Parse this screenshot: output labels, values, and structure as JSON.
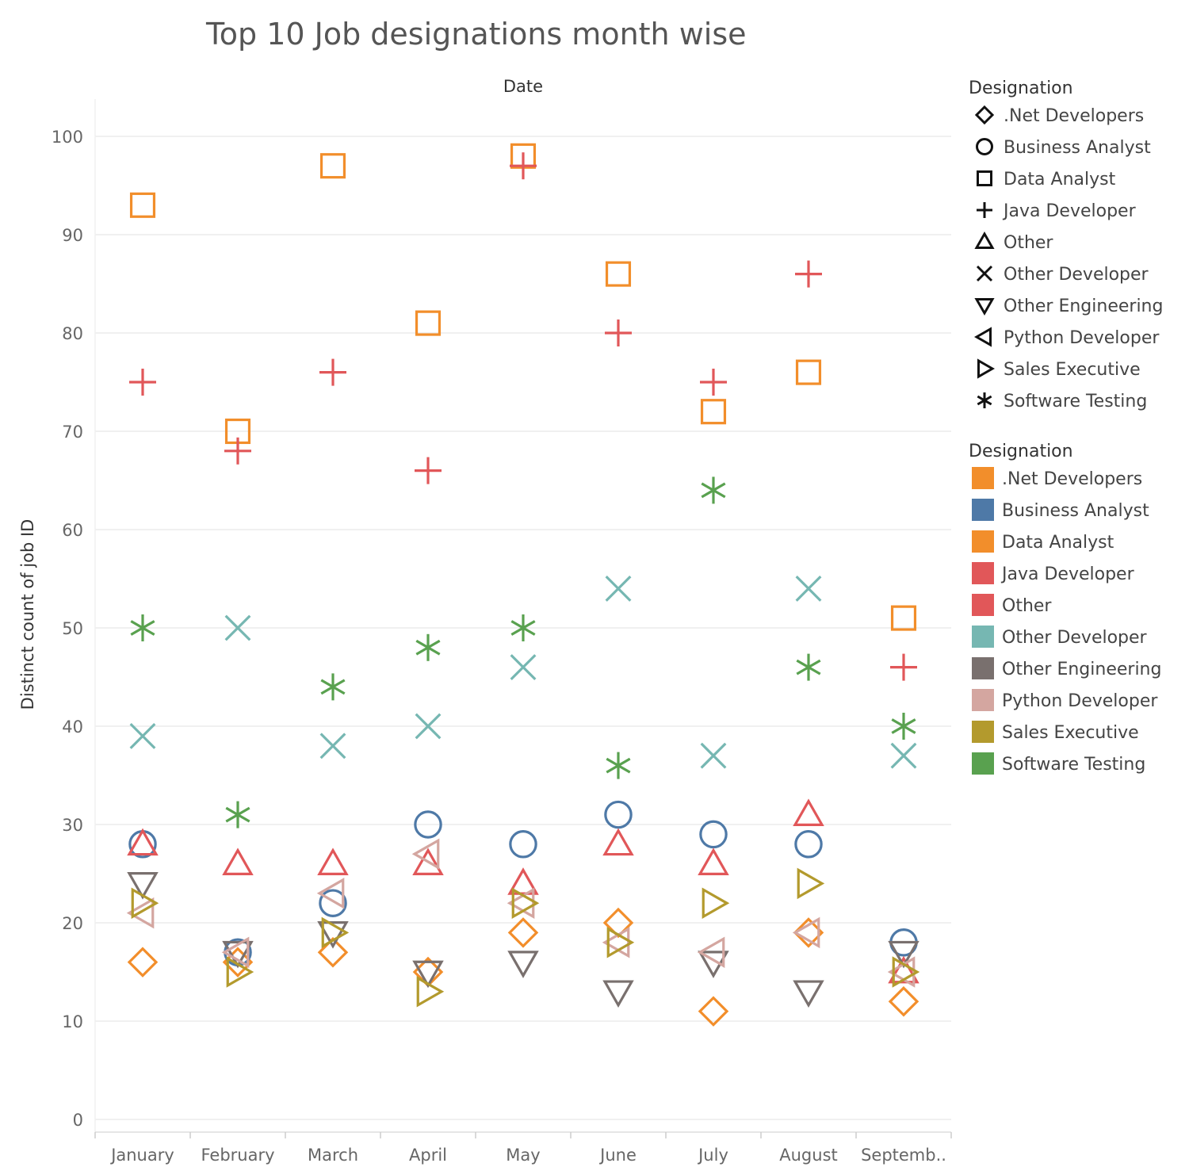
{
  "chart_data": {
    "type": "scatter",
    "title": "Top 10 Job designations month wise",
    "column_header": "Date",
    "xlabel": "",
    "ylabel": "Distinct count of job ID",
    "ylim": [
      0,
      105
    ],
    "yticks": [
      0,
      10,
      20,
      30,
      40,
      50,
      60,
      70,
      80,
      90,
      100
    ],
    "categories": [
      "January",
      "February",
      "March",
      "April",
      "May",
      "June",
      "July",
      "August",
      "Septemb.."
    ],
    "grid": "horizontal",
    "legend_position": "right",
    "series": [
      {
        "name": ".Net Developers",
        "shape": "diamond",
        "color": "#f28e2b",
        "values": [
          16,
          16,
          17,
          15,
          19,
          20,
          11,
          19,
          12
        ]
      },
      {
        "name": "Business Analyst",
        "shape": "circle",
        "color": "#4e79a7",
        "values": [
          28,
          17,
          22,
          30,
          28,
          31,
          29,
          28,
          18
        ]
      },
      {
        "name": "Data Analyst",
        "shape": "square",
        "color": "#f28e2b",
        "values": [
          93,
          70,
          97,
          81,
          98,
          86,
          72,
          76,
          51
        ]
      },
      {
        "name": "Java Developer",
        "shape": "plus",
        "color": "#e15759",
        "values": [
          75,
          68,
          76,
          66,
          97,
          80,
          75,
          86,
          46
        ]
      },
      {
        "name": "Other",
        "shape": "triangle-up",
        "color": "#e15759",
        "values": [
          28,
          26,
          26,
          26,
          24,
          28,
          26,
          31,
          15
        ]
      },
      {
        "name": "Other Developer",
        "shape": "cross",
        "color": "#76b7b2",
        "values": [
          39,
          50,
          38,
          40,
          46,
          54,
          37,
          54,
          37
        ]
      },
      {
        "name": "Other Engineering",
        "shape": "triangle-down",
        "color": "#79706e",
        "values": [
          24,
          17,
          19,
          15,
          16,
          13,
          16,
          13,
          17
        ]
      },
      {
        "name": "Python Developer",
        "shape": "triangle-left",
        "color": "#d4a6a0",
        "values": [
          21,
          17,
          23,
          27,
          22,
          18,
          17,
          19,
          15
        ]
      },
      {
        "name": "Sales Executive",
        "shape": "triangle-right",
        "color": "#b39a2d",
        "values": [
          22,
          15,
          19,
          13,
          22,
          18,
          22,
          24,
          15
        ]
      },
      {
        "name": "Software Testing",
        "shape": "asterisk",
        "color": "#59a14f",
        "values": [
          50,
          31,
          44,
          48,
          50,
          36,
          64,
          46,
          40
        ]
      }
    ]
  },
  "legend_shape": {
    "title": "Designation",
    "items": [
      {
        "label": ".Net Developers",
        "shape": "diamond"
      },
      {
        "label": "Business Analyst",
        "shape": "circle"
      },
      {
        "label": "Data Analyst",
        "shape": "square"
      },
      {
        "label": "Java Developer",
        "shape": "plus"
      },
      {
        "label": "Other",
        "shape": "triangle-up"
      },
      {
        "label": "Other Developer",
        "shape": "cross"
      },
      {
        "label": "Other Engineering",
        "shape": "triangle-down"
      },
      {
        "label": "Python Developer",
        "shape": "triangle-left"
      },
      {
        "label": "Sales Executive",
        "shape": "triangle-right"
      },
      {
        "label": "Software Testing",
        "shape": "asterisk"
      }
    ]
  },
  "legend_color": {
    "title": "Designation",
    "items": [
      {
        "label": ".Net Developers",
        "color": "#f28e2b"
      },
      {
        "label": "Business Analyst",
        "color": "#4e79a7"
      },
      {
        "label": "Data Analyst",
        "color": "#f28e2b"
      },
      {
        "label": "Java Developer",
        "color": "#e15759"
      },
      {
        "label": "Other",
        "color": "#e15759"
      },
      {
        "label": "Other Developer",
        "color": "#76b7b2"
      },
      {
        "label": "Other Engineering",
        "color": "#79706e"
      },
      {
        "label": "Python Developer",
        "color": "#d4a6a0"
      },
      {
        "label": "Sales Executive",
        "color": "#b39a2d"
      },
      {
        "label": "Software Testing",
        "color": "#59a14f"
      }
    ]
  }
}
